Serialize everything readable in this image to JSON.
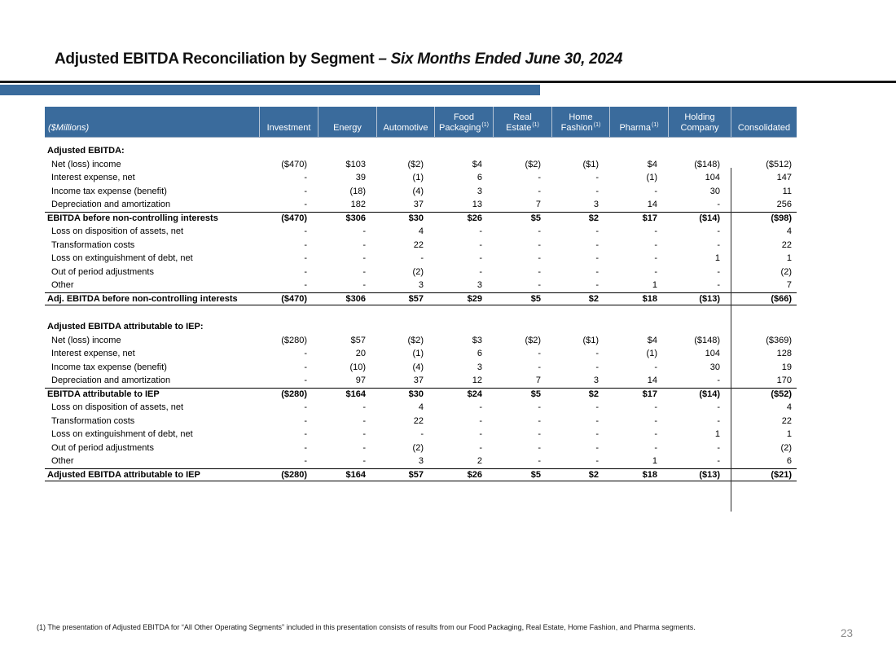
{
  "slide": {
    "title_main": "Adjusted EBITDA Reconciliation by Segment ",
    "title_emphasis": "– Six Months Ended June 30, 2024",
    "page_number": "23",
    "footnote": "(1) The presentation of Adjusted EBITDA for “All Other Operating Segments” included in this presentation consists of results from our Food Packaging, Real Estate, Home Fashion, and Pharma segments."
  },
  "colors": {
    "header_bg": "#3A6B9C",
    "accent_bar": "#3A6B9C",
    "rule": "#171717",
    "page_number": "#8A8A8A"
  },
  "table": {
    "columns": [
      {
        "label": "($Millions)",
        "italic": true
      },
      {
        "line2": "Investment"
      },
      {
        "line2": "Energy"
      },
      {
        "line2": "Automotive"
      },
      {
        "line1": "Food",
        "line2": "Packaging",
        "sup": "(1)"
      },
      {
        "line1": "Real",
        "line2": "Estate",
        "sup": "(1)"
      },
      {
        "line1": "Home",
        "line2": "Fashion",
        "sup": "(1)"
      },
      {
        "line2": "Pharma",
        "sup": "(1)"
      },
      {
        "line1": "Holding",
        "line2": "Company"
      },
      {
        "line2": "Consolidated"
      }
    ],
    "rows": [
      {
        "type": "section",
        "label": "Adjusted EBITDA:"
      },
      {
        "type": "item",
        "label": "Net (loss) income",
        "values": [
          "($470)",
          "$103",
          "($2)",
          "$4",
          "($2)",
          "($1)",
          "$4",
          "($148)",
          "($512)"
        ]
      },
      {
        "type": "item",
        "label": "Interest expense, net",
        "values": [
          "-",
          "39",
          "(1)",
          "6",
          "-",
          "-",
          "(1)",
          "104",
          "147"
        ]
      },
      {
        "type": "item",
        "label": "Income tax expense (benefit)",
        "values": [
          "-",
          "(18)",
          "(4)",
          "3",
          "-",
          "-",
          "-",
          "30",
          "11"
        ]
      },
      {
        "type": "item",
        "label": "Depreciation and amortization",
        "values": [
          "-",
          "182",
          "37",
          "13",
          "7",
          "3",
          "14",
          "-",
          "256"
        ]
      },
      {
        "type": "total",
        "label": "EBITDA before non-controlling interests",
        "values": [
          "($470)",
          "$306",
          "$30",
          "$26",
          "$5",
          "$2",
          "$17",
          "($14)",
          "($98)"
        ]
      },
      {
        "type": "item",
        "label": "Loss on disposition of assets, net",
        "values": [
          "-",
          "-",
          "4",
          "-",
          "-",
          "-",
          "-",
          "-",
          "4"
        ]
      },
      {
        "type": "item",
        "label": "Transformation costs",
        "values": [
          "-",
          "-",
          "22",
          "-",
          "-",
          "-",
          "-",
          "-",
          "22"
        ]
      },
      {
        "type": "item",
        "label": "Loss on extinguishment of debt, net",
        "values": [
          "-",
          "-",
          "-",
          "-",
          "-",
          "-",
          "-",
          "1",
          "1"
        ]
      },
      {
        "type": "item",
        "label": "Out of period adjustments",
        "values": [
          "-",
          "-",
          "(2)",
          "-",
          "-",
          "-",
          "-",
          "-",
          "(2)"
        ]
      },
      {
        "type": "item",
        "label": "Other",
        "values": [
          "-",
          "-",
          "3",
          "3",
          "-",
          "-",
          "1",
          "-",
          "7"
        ]
      },
      {
        "type": "grand",
        "label": "Adj. EBITDA before non-controlling interests",
        "values": [
          "($470)",
          "$306",
          "$57",
          "$29",
          "$5",
          "$2",
          "$18",
          "($13)",
          "($66)"
        ]
      },
      {
        "type": "spacer"
      },
      {
        "type": "section",
        "label": "Adjusted EBITDA attributable to IEP:"
      },
      {
        "type": "item",
        "label": "Net (loss) income",
        "values": [
          "($280)",
          "$57",
          "($2)",
          "$3",
          "($2)",
          "($1)",
          "$4",
          "($148)",
          "($369)"
        ]
      },
      {
        "type": "item",
        "label": "Interest expense, net",
        "values": [
          "-",
          "20",
          "(1)",
          "6",
          "-",
          "-",
          "(1)",
          "104",
          "128"
        ]
      },
      {
        "type": "item",
        "label": "Income tax expense (benefit)",
        "values": [
          "-",
          "(10)",
          "(4)",
          "3",
          "-",
          "-",
          "-",
          "30",
          "19"
        ]
      },
      {
        "type": "item",
        "label": "Depreciation and amortization",
        "values": [
          "-",
          "97",
          "37",
          "12",
          "7",
          "3",
          "14",
          "-",
          "170"
        ]
      },
      {
        "type": "total",
        "label": "EBITDA attributable to IEP",
        "values": [
          "($280)",
          "$164",
          "$30",
          "$24",
          "$5",
          "$2",
          "$17",
          "($14)",
          "($52)"
        ]
      },
      {
        "type": "item",
        "label": "Loss on disposition of assets, net",
        "values": [
          "-",
          "-",
          "4",
          "-",
          "-",
          "-",
          "-",
          "-",
          "4"
        ]
      },
      {
        "type": "item",
        "label": "Transformation costs",
        "values": [
          "-",
          "-",
          "22",
          "-",
          "-",
          "-",
          "-",
          "-",
          "22"
        ]
      },
      {
        "type": "item",
        "label": "Loss on extinguishment of debt, net",
        "values": [
          "-",
          "-",
          "-",
          "-",
          "-",
          "-",
          "-",
          "1",
          "1"
        ]
      },
      {
        "type": "item",
        "label": "Out of period adjustments",
        "values": [
          "-",
          "-",
          "(2)",
          "-",
          "-",
          "-",
          "-",
          "-",
          "(2)"
        ]
      },
      {
        "type": "item",
        "label": "Other",
        "values": [
          "-",
          "-",
          "3",
          "2",
          "-",
          "-",
          "1",
          "-",
          "6"
        ]
      },
      {
        "type": "grand",
        "label": "Adjusted EBITDA attributable to IEP",
        "values": [
          "($280)",
          "$164",
          "$57",
          "$26",
          "$5",
          "$2",
          "$18",
          "($13)",
          "($21)"
        ]
      }
    ]
  }
}
